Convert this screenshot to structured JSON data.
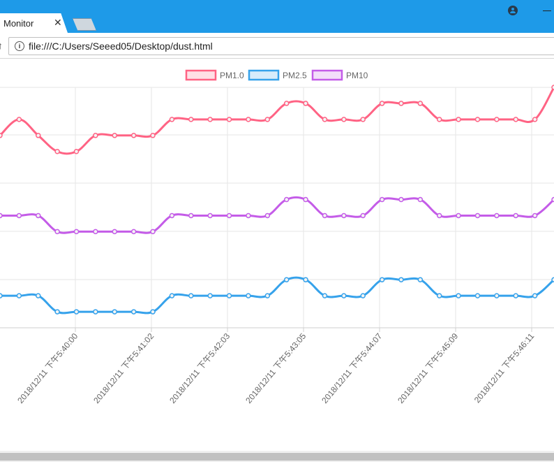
{
  "browser": {
    "tab_title": "Monitor",
    "tab_close": "✕",
    "address_url": "file:///C:/Users/Seeed05/Desktop/dust.html",
    "info_icon": "i"
  },
  "colors": {
    "titlebar": "#1e9ae8",
    "pm10_color": "#ff6384",
    "pm25_color": "#36a2eb",
    "pm10b_color": "#c45ce8"
  },
  "chart_data": {
    "type": "line",
    "legend_position": "top",
    "grid": true,
    "series": [
      {
        "name": "PM1.0",
        "color": "#ff6384",
        "values": [
          [
            -1,
            12
          ],
          [
            1,
            13
          ],
          [
            3,
            12
          ],
          [
            5,
            11
          ],
          [
            7,
            11
          ],
          [
            9,
            12
          ],
          [
            11,
            12
          ],
          [
            13,
            12
          ],
          [
            15,
            12
          ],
          [
            17,
            13
          ],
          [
            19,
            13
          ],
          [
            21,
            13
          ],
          [
            23,
            13
          ],
          [
            25,
            13
          ],
          [
            27,
            13
          ],
          [
            29,
            14
          ],
          [
            31,
            14
          ],
          [
            33,
            13
          ],
          [
            35,
            13
          ],
          [
            37,
            13
          ],
          [
            39,
            14
          ],
          [
            41,
            14
          ],
          [
            43,
            14
          ],
          [
            45,
            13
          ],
          [
            47,
            13
          ],
          [
            49,
            13
          ],
          [
            51,
            13
          ],
          [
            53,
            13
          ],
          [
            55,
            13
          ],
          [
            57,
            15
          ]
        ]
      },
      {
        "name": "PM2.5",
        "color": "#36a2eb",
        "values": [
          [
            -1,
            2
          ],
          [
            1,
            2
          ],
          [
            3,
            2
          ],
          [
            5,
            1
          ],
          [
            7,
            1
          ],
          [
            9,
            1
          ],
          [
            11,
            1
          ],
          [
            13,
            1
          ],
          [
            15,
            1
          ],
          [
            17,
            2
          ],
          [
            19,
            2
          ],
          [
            21,
            2
          ],
          [
            23,
            2
          ],
          [
            25,
            2
          ],
          [
            27,
            2
          ],
          [
            29,
            3
          ],
          [
            31,
            3
          ],
          [
            33,
            2
          ],
          [
            35,
            2
          ],
          [
            37,
            2
          ],
          [
            39,
            3
          ],
          [
            41,
            3
          ],
          [
            43,
            3
          ],
          [
            45,
            2
          ],
          [
            47,
            2
          ],
          [
            49,
            2
          ],
          [
            51,
            2
          ],
          [
            53,
            2
          ],
          [
            55,
            2
          ],
          [
            57,
            3
          ]
        ]
      },
      {
        "name": "PM10",
        "color": "#c45ce8",
        "values": [
          [
            -1,
            7
          ],
          [
            1,
            7
          ],
          [
            3,
            7
          ],
          [
            5,
            6
          ],
          [
            7,
            6
          ],
          [
            9,
            6
          ],
          [
            11,
            6
          ],
          [
            13,
            6
          ],
          [
            15,
            6
          ],
          [
            17,
            7
          ],
          [
            19,
            7
          ],
          [
            21,
            7
          ],
          [
            23,
            7
          ],
          [
            25,
            7
          ],
          [
            27,
            7
          ],
          [
            29,
            8
          ],
          [
            31,
            8
          ],
          [
            33,
            7
          ],
          [
            35,
            7
          ],
          [
            37,
            7
          ],
          [
            39,
            8
          ],
          [
            41,
            8
          ],
          [
            43,
            8
          ],
          [
            45,
            7
          ],
          [
            47,
            7
          ],
          [
            49,
            7
          ],
          [
            51,
            7
          ],
          [
            53,
            7
          ],
          [
            55,
            7
          ],
          [
            57,
            8
          ]
        ]
      }
    ],
    "x_tick_labels": [
      "2018/12/11 下午5:40:00",
      "2018/12/11 下午5:41:02",
      "2018/12/11 下午5:42:03",
      "2018/12/11 下午5:43:05",
      "2018/12/11 下午5:44:07",
      "2018/12/11 下午5:45:09",
      "2018/12/11 下午5:46:11"
    ]
  }
}
